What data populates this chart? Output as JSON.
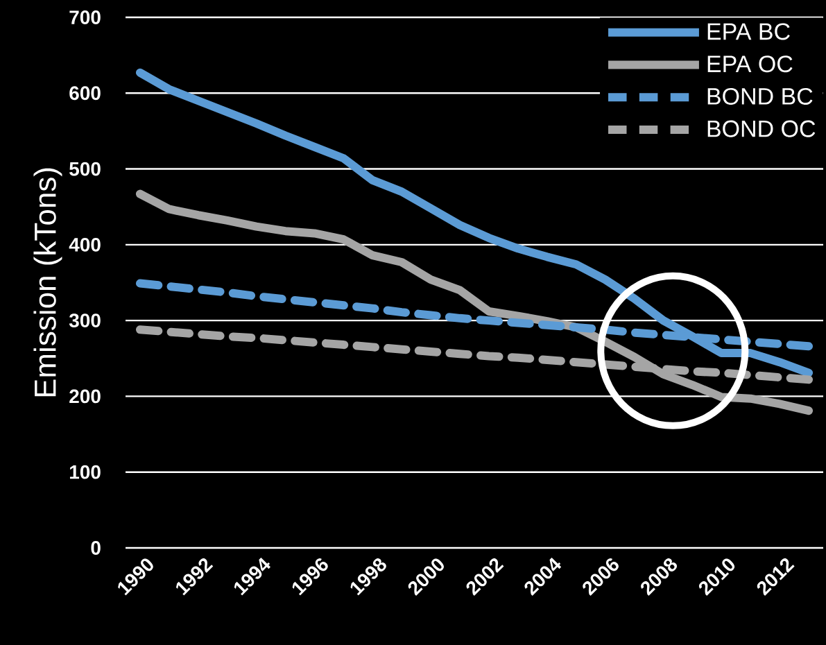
{
  "chart_data": {
    "type": "line",
    "ylabel": "Emission (kTons)",
    "categories": [
      "1990",
      null,
      "1992",
      null,
      "1994",
      null,
      "1996",
      null,
      "1998",
      null,
      "2000",
      null,
      "2002",
      null,
      "2004",
      null,
      "2006",
      null,
      "2008",
      null,
      "2010",
      null,
      "2012",
      null
    ],
    "series": [
      {
        "name": "EPA BC",
        "color": "#5b9bd5",
        "line_style": "solid",
        "values": [
          627,
          605,
          590,
          575,
          560,
          544,
          529,
          514,
          485,
          470,
          448,
          426,
          409,
          395,
          384,
          374,
          354,
          329,
          300,
          279,
          257,
          257,
          245,
          231
        ]
      },
      {
        "name": "EPA OC",
        "color": "#a5a5a5",
        "line_style": "solid",
        "values": [
          467,
          447,
          439,
          432,
          424,
          418,
          415,
          407,
          386,
          377,
          354,
          340,
          312,
          306,
          299,
          291,
          272,
          252,
          229,
          215,
          199,
          197,
          190,
          181
        ]
      },
      {
        "name": "BOND BC",
        "color": "#5b9bd5",
        "line_style": "dashed",
        "values": [
          349,
          345,
          341,
          337,
          332,
          328,
          324,
          320,
          316,
          311,
          307,
          303,
          300,
          297,
          294,
          291,
          288,
          284,
          281,
          278,
          275,
          272,
          269,
          266
        ]
      },
      {
        "name": "BOND OC",
        "color": "#a5a5a5",
        "line_style": "dashed",
        "values": [
          288,
          285,
          282,
          279,
          277,
          274,
          271,
          268,
          265,
          262,
          259,
          256,
          253,
          251,
          248,
          245,
          242,
          239,
          236,
          233,
          231,
          228,
          225,
          222
        ]
      }
    ],
    "ylim": [
      0,
      700
    ],
    "yticks": [
      0,
      100,
      200,
      300,
      400,
      500,
      600,
      700
    ],
    "grid": "y",
    "legend": "top right"
  }
}
